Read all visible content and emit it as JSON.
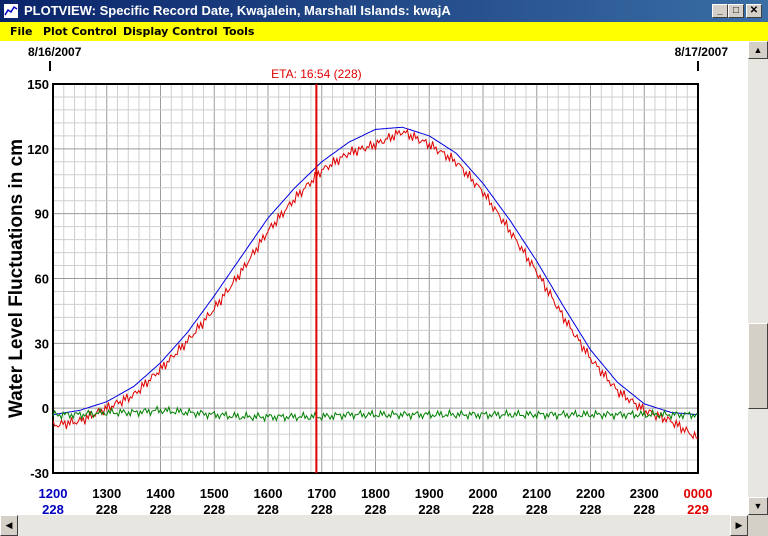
{
  "window": {
    "title": "PLOTVIEW: Specific Record Date, Kwajalein, Marshall Islands: kwajA",
    "minimize_glyph": "_",
    "maximize_glyph": "□",
    "close_glyph": "✕"
  },
  "menu": {
    "items": [
      "File",
      "Plot Control",
      "Display Control",
      "Tools"
    ]
  },
  "scrollbars": {
    "up_glyph": "▲",
    "down_glyph": "▼",
    "left_glyph": "◀",
    "right_glyph": "▶"
  },
  "colors": {
    "titlebar": "#0a246a",
    "menubar": "#ffff00",
    "observed": "#e00000",
    "predicted": "#0000e0",
    "residual": "#008000",
    "eta_line": "#e00000"
  },
  "chart_data": {
    "type": "line",
    "date_start": "8/16/2007",
    "date_end": "8/17/2007",
    "eta_label": "ETA: 16:54 (228)",
    "eta_time": "1654",
    "ylabel": "Water Level Fluctuations in cm",
    "ylim": [
      -30,
      150
    ],
    "yticks": [
      "150",
      "120",
      "90",
      "60",
      "30",
      "0",
      "-30"
    ],
    "xticks": [
      {
        "time": "1200",
        "day": "228"
      },
      {
        "time": "1300",
        "day": "228"
      },
      {
        "time": "1400",
        "day": "228"
      },
      {
        "time": "1500",
        "day": "228"
      },
      {
        "time": "1600",
        "day": "228"
      },
      {
        "time": "1700",
        "day": "228"
      },
      {
        "time": "1800",
        "day": "228"
      },
      {
        "time": "1900",
        "day": "228"
      },
      {
        "time": "2000",
        "day": "228"
      },
      {
        "time": "2100",
        "day": "228"
      },
      {
        "time": "2200",
        "day": "228"
      },
      {
        "time": "2300",
        "day": "228"
      },
      {
        "time": "0000",
        "day": "229"
      }
    ],
    "x_hours": [
      12,
      12.5,
      13,
      13.5,
      14,
      14.5,
      15,
      15.5,
      16,
      16.5,
      17,
      17.5,
      18,
      18.5,
      19,
      19.5,
      20,
      20.5,
      21,
      21.5,
      22,
      22.5,
      23,
      23.5,
      24
    ],
    "series": [
      {
        "key": "predicted",
        "values": [
          -3,
          -1,
          3,
          10,
          21,
          35,
          52,
          70,
          88,
          102,
          114,
          123,
          129,
          130,
          126,
          118,
          104,
          87,
          68,
          47,
          27,
          12,
          2,
          -2,
          -3
        ]
      },
      {
        "key": "observed",
        "values": [
          -8,
          -6,
          0,
          6,
          18,
          31,
          46,
          63,
          82,
          97,
          110,
          118,
          122,
          128,
          122,
          114,
          100,
          82,
          63,
          42,
          23,
          8,
          -1,
          -6,
          -14
        ]
      },
      {
        "key": "residual",
        "values": [
          -3,
          -3,
          -2,
          -2,
          -1,
          -2,
          -3,
          -4,
          -4,
          -4,
          -4,
          -3,
          -3,
          -3,
          -3,
          -3,
          -3,
          -3,
          -3,
          -3,
          -3,
          -3,
          -3,
          -3,
          -3
        ]
      }
    ]
  }
}
